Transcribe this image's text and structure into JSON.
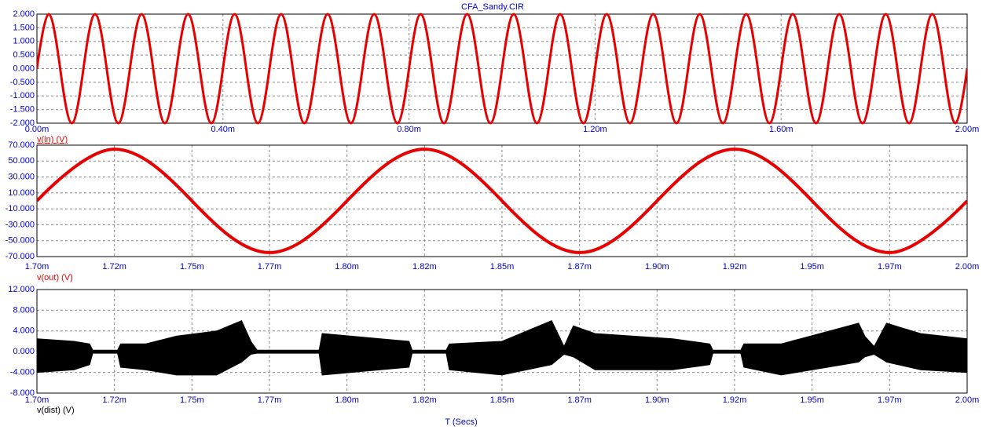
{
  "chart_data": [
    {
      "type": "line",
      "title": "CFA_Sandy.CIR",
      "x": [
        0,
        0.025,
        0.05,
        0.075,
        0.1,
        0.125,
        0.15,
        0.175,
        0.2,
        0.225,
        0.25,
        0.275,
        0.3,
        0.325,
        0.35,
        0.375,
        0.4,
        0.425,
        0.45,
        0.475,
        0.5,
        0.525,
        0.55,
        0.575,
        0.6,
        0.625,
        0.65,
        0.675,
        0.7,
        0.725,
        0.75,
        0.775,
        0.8,
        0.825,
        0.85,
        0.875,
        0.9,
        0.925,
        0.95,
        0.975,
        1,
        1.025,
        1.05,
        1.075,
        1.1,
        1.125,
        1.15,
        1.175,
        1.2,
        1.225,
        1.25,
        1.275,
        1.3,
        1.325,
        1.35,
        1.375,
        1.4,
        1.425,
        1.45,
        1.475,
        1.5,
        1.525,
        1.55,
        1.575,
        1.6,
        1.625,
        1.65,
        1.675,
        1.7,
        1.725,
        1.75,
        1.775,
        1.8,
        1.825,
        1.85,
        1.875,
        1.9,
        1.925,
        1.95,
        1.975,
        2
      ],
      "series": [
        {
          "name": "v(in) (V)",
          "color": "#e60000",
          "values": [
            0,
            2,
            0,
            -2,
            0,
            2,
            0,
            -2,
            0,
            2,
            0,
            -2,
            0,
            2,
            0,
            -2,
            0,
            2,
            0,
            -2,
            0,
            2,
            0,
            -2,
            0,
            2,
            0,
            -2,
            0,
            2,
            0,
            -2,
            0,
            2,
            0,
            -2,
            0,
            2,
            0,
            -2,
            0,
            2,
            0,
            -2,
            0,
            2,
            0,
            -2,
            0,
            2,
            0,
            -2,
            0,
            2,
            0,
            -2,
            0,
            2,
            0,
            -2,
            0,
            2,
            0,
            -2,
            0,
            2,
            0,
            -2,
            0,
            2,
            0,
            -2,
            0,
            2,
            0,
            -2,
            0,
            2,
            0,
            -2,
            0
          ]
        }
      ],
      "xlim": [
        0,
        2
      ],
      "xticks": [
        {
          "value": 0,
          "label": "0.00m"
        },
        {
          "value": 0.4,
          "label": "0.40m"
        },
        {
          "value": 0.8,
          "label": "0.80m"
        },
        {
          "value": 1.2,
          "label": "1.20m"
        },
        {
          "value": 1.6,
          "label": "1.60m"
        },
        {
          "value": 2,
          "label": "2.00m"
        }
      ],
      "ylim": [
        -2,
        2
      ],
      "yticks": [
        {
          "value": 2,
          "label": "2.000"
        },
        {
          "value": 1.5,
          "label": "1.500"
        },
        {
          "value": 1,
          "label": "1.000"
        },
        {
          "value": 0.5,
          "label": "0.500"
        },
        {
          "value": 0,
          "label": "0.000"
        },
        {
          "value": -0.5,
          "label": "-0.500"
        },
        {
          "value": -1,
          "label": "-1.000"
        },
        {
          "value": -1.5,
          "label": "-1.500"
        },
        {
          "value": -2,
          "label": "-2.000"
        }
      ],
      "grid": true
    },
    {
      "type": "line",
      "x": [
        1.7,
        1.725,
        1.75,
        1.775,
        1.8,
        1.825,
        1.85,
        1.875,
        1.9,
        1.925,
        1.95,
        1.975,
        2
      ],
      "series": [
        {
          "name": "v(out) (V)",
          "color": "#e60000",
          "values": [
            0,
            65,
            0,
            -65,
            0,
            65,
            0,
            -65,
            0,
            65,
            0,
            -65,
            0
          ]
        }
      ],
      "xlim": [
        1.7,
        2
      ],
      "xticks": [
        {
          "value": 1.7,
          "label": "1.70m"
        },
        {
          "value": 1.725,
          "label": "1.72m"
        },
        {
          "value": 1.75,
          "label": "1.75m"
        },
        {
          "value": 1.775,
          "label": "1.77m"
        },
        {
          "value": 1.8,
          "label": "1.80m"
        },
        {
          "value": 1.825,
          "label": "1.82m"
        },
        {
          "value": 1.85,
          "label": "1.85m"
        },
        {
          "value": 1.875,
          "label": "1.87m"
        },
        {
          "value": 1.9,
          "label": "1.90m"
        },
        {
          "value": 1.925,
          "label": "1.92m"
        },
        {
          "value": 1.95,
          "label": "1.95m"
        },
        {
          "value": 1.975,
          "label": "1.97m"
        },
        {
          "value": 2,
          "label": "2.00m"
        }
      ],
      "ylim": [
        -70,
        70
      ],
      "yticks": [
        {
          "value": 70,
          "label": "70.000"
        },
        {
          "value": 50,
          "label": "50.000"
        },
        {
          "value": 30,
          "label": "30.000"
        },
        {
          "value": 10,
          "label": "10.000"
        },
        {
          "value": -10,
          "label": "-10.000"
        },
        {
          "value": -30,
          "label": "-30.000"
        },
        {
          "value": -50,
          "label": "-50.000"
        },
        {
          "value": -70,
          "label": "-70.000"
        }
      ],
      "grid": true
    },
    {
      "type": "band",
      "x_label": "T (Secs)",
      "x": [
        1.7,
        1.712,
        1.717,
        1.718,
        1.726,
        1.727,
        1.735,
        1.745,
        1.758,
        1.766,
        1.769,
        1.771,
        1.791,
        1.792,
        1.82,
        1.821,
        1.832,
        1.833,
        1.85,
        1.866,
        1.87,
        1.873,
        1.88,
        1.905,
        1.917,
        1.918,
        1.927,
        1.928,
        1.94,
        1.965,
        1.967,
        1.97,
        1.974,
        1.985,
        2
      ],
      "series": [
        {
          "name": "v(dist) (V)",
          "color": "#000000",
          "high": [
            2.5,
            2,
            1.5,
            0.3,
            0.3,
            1.5,
            1.5,
            3,
            4,
            6,
            2,
            0.3,
            0.3,
            3.5,
            2,
            0.3,
            0.3,
            1.5,
            2,
            6,
            1,
            5,
            3.5,
            2.5,
            1.5,
            0.3,
            0.3,
            1.5,
            1.5,
            5.5,
            3,
            1,
            5.5,
            3.5,
            2.5
          ],
          "low": [
            -4,
            -3.5,
            -2.5,
            -0.3,
            -0.3,
            -3,
            -3.5,
            -4.5,
            -4.5,
            -2,
            -0.5,
            -0.3,
            -0.3,
            -4.5,
            -3,
            -0.3,
            -0.3,
            -3.5,
            -4.5,
            -2.5,
            -0.5,
            -1,
            -3.5,
            -3.5,
            -2.5,
            -0.3,
            -0.3,
            -3,
            -4.5,
            -2,
            -1,
            -0.5,
            -2,
            -3.5,
            -4
          ]
        }
      ],
      "xlim": [
        1.7,
        2
      ],
      "xticks": [
        {
          "value": 1.7,
          "label": "1.70m"
        },
        {
          "value": 1.725,
          "label": "1.72m"
        },
        {
          "value": 1.75,
          "label": "1.75m"
        },
        {
          "value": 1.775,
          "label": "1.77m"
        },
        {
          "value": 1.8,
          "label": "1.80m"
        },
        {
          "value": 1.825,
          "label": "1.82m"
        },
        {
          "value": 1.85,
          "label": "1.85m"
        },
        {
          "value": 1.875,
          "label": "1.87m"
        },
        {
          "value": 1.9,
          "label": "1.90m"
        },
        {
          "value": 1.925,
          "label": "1.92m"
        },
        {
          "value": 1.95,
          "label": "1.95m"
        },
        {
          "value": 1.975,
          "label": "1.97m"
        },
        {
          "value": 2,
          "label": "2.00m"
        }
      ],
      "ylim": [
        -8,
        12
      ],
      "yticks": [
        {
          "value": 12,
          "label": "12.000"
        },
        {
          "value": 8,
          "label": "8.000"
        },
        {
          "value": 4,
          "label": "4.000"
        },
        {
          "value": 0,
          "label": "0.000"
        },
        {
          "value": -4,
          "label": "-4.000"
        },
        {
          "value": -8,
          "label": "-8.000"
        }
      ],
      "grid": true
    }
  ]
}
